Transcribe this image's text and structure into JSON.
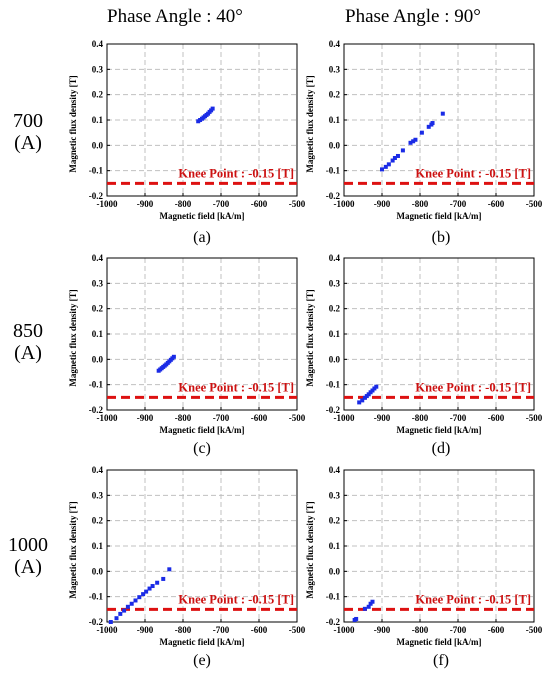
{
  "column_headers": [
    "Phase Angle : 40°",
    "Phase Angle : 90°"
  ],
  "row_labels": [
    {
      "value": "700",
      "unit": "(A)"
    },
    {
      "value": "850",
      "unit": "(A)"
    },
    {
      "value": "1000",
      "unit": "(A)"
    }
  ],
  "colors": {
    "data": "#1a2be6",
    "knee": "#dd1111",
    "grid": "#c0c0c0"
  },
  "chart_data": [
    {
      "type": "scatter",
      "caption": "(a)",
      "xlabel": "Magnetic field [kA/m]",
      "ylabel": "Magnetic flux density [T]",
      "xlim": [
        -1000,
        -500
      ],
      "ylim": [
        -0.2,
        0.4
      ],
      "xticks": [
        "-1000",
        "-900",
        "-800",
        "-700",
        "-600",
        "-500"
      ],
      "yticks": [
        "0.4",
        "0.3",
        "0.2",
        "0.1",
        "0.0",
        "-0.1",
        "-0.2"
      ],
      "knee_value": -0.15,
      "knee_label": "Knee Point : -0.15 [T]",
      "x": [
        -760,
        -755,
        -750,
        -746,
        -742,
        -738,
        -734,
        -730,
        -726,
        -722
      ],
      "y": [
        0.095,
        0.1,
        0.105,
        0.11,
        0.115,
        0.12,
        0.125,
        0.132,
        0.138,
        0.145
      ]
    },
    {
      "type": "scatter",
      "caption": "(b)",
      "xlabel": "Magnetic field [kA/m]",
      "ylabel": "Magnetic flux density [T]",
      "xlim": [
        -1000,
        -500
      ],
      "ylim": [
        -0.2,
        0.4
      ],
      "xticks": [
        "-1000",
        "-900",
        "-800",
        "-700",
        "-600",
        "-500"
      ],
      "yticks": [
        "0.4",
        "0.3",
        "0.2",
        "0.1",
        "0.0",
        "-0.1",
        "-0.2"
      ],
      "knee_value": -0.15,
      "knee_label": "Knee Point : -0.15 [T]",
      "x": [
        -900,
        -890,
        -882,
        -872,
        -866,
        -858,
        -845,
        -825,
        -818,
        -812,
        -795,
        -777,
        -770,
        -767,
        -740
      ],
      "y": [
        -0.095,
        -0.085,
        -0.075,
        -0.06,
        -0.05,
        -0.042,
        -0.02,
        0.01,
        0.016,
        0.022,
        0.05,
        0.073,
        0.082,
        0.088,
        0.125
      ]
    },
    {
      "type": "scatter",
      "caption": "(c)",
      "xlabel": "Magnetic field [kA/m]",
      "ylabel": "Magnetic flux density [T]",
      "xlim": [
        -1000,
        -500
      ],
      "ylim": [
        -0.2,
        0.4
      ],
      "xticks": [
        "-1000",
        "-900",
        "-800",
        "-700",
        "-600",
        "-500"
      ],
      "yticks": [
        "0.4",
        "0.3",
        "0.2",
        "0.1",
        "0.0",
        "-0.1",
        "-0.2"
      ],
      "knee_value": -0.15,
      "knee_label": "Knee Point : -0.15 [T]",
      "x": [
        -864,
        -860,
        -856,
        -852,
        -848,
        -844,
        -840,
        -836,
        -832,
        -828,
        -824
      ],
      "y": [
        -0.045,
        -0.04,
        -0.035,
        -0.03,
        -0.025,
        -0.02,
        -0.014,
        -0.008,
        -0.002,
        0.004,
        0.01
      ]
    },
    {
      "type": "scatter",
      "caption": "(d)",
      "xlabel": "Magnetic field [kA/m]",
      "ylabel": "Magnetic flux density [T]",
      "xlim": [
        -1000,
        -500
      ],
      "ylim": [
        -0.2,
        0.4
      ],
      "xticks": [
        "-1000",
        "-900",
        "-800",
        "-700",
        "-600",
        "-500"
      ],
      "yticks": [
        "0.4",
        "0.3",
        "0.2",
        "0.1",
        "0.0",
        "-0.1",
        "-0.2"
      ],
      "knee_value": -0.15,
      "knee_label": "Knee Point : -0.15 [T]",
      "x": [
        -960,
        -952,
        -945,
        -940,
        -935,
        -930,
        -925,
        -920,
        -915
      ],
      "y": [
        -0.17,
        -0.162,
        -0.152,
        -0.145,
        -0.138,
        -0.13,
        -0.123,
        -0.115,
        -0.108
      ]
    },
    {
      "type": "scatter",
      "caption": "(e)",
      "xlabel": "Magnetic field [kA/m]",
      "ylabel": "Magnetic flux density [T]",
      "xlim": [
        -1000,
        -500
      ],
      "ylim": [
        -0.2,
        0.4
      ],
      "xticks": [
        "-1000",
        "-900",
        "-800",
        "-700",
        "-600",
        "-500"
      ],
      "yticks": [
        "0.4",
        "0.3",
        "0.2",
        "0.1",
        "0.0",
        "-0.1",
        "-0.2"
      ],
      "knee_value": -0.15,
      "knee_label": "Knee Point : -0.15 [T]",
      "x": [
        -990,
        -975,
        -965,
        -955,
        -945,
        -935,
        -925,
        -915,
        -905,
        -897,
        -888,
        -880,
        -868,
        -852,
        -836
      ],
      "y": [
        -0.2,
        -0.185,
        -0.168,
        -0.155,
        -0.14,
        -0.128,
        -0.115,
        -0.102,
        -0.09,
        -0.08,
        -0.068,
        -0.058,
        -0.045,
        -0.03,
        0.008
      ]
    },
    {
      "type": "scatter",
      "caption": "(f)",
      "xlabel": "Magnetic field [kA/m]",
      "ylabel": "Magnetic flux density [T]",
      "xlim": [
        -1000,
        -500
      ],
      "ylim": [
        -0.2,
        0.4
      ],
      "xticks": [
        "-1000",
        "-900",
        "-800",
        "-700",
        "-600",
        "-500"
      ],
      "yticks": [
        "0.4",
        "0.3",
        "0.2",
        "0.1",
        "0.0",
        "-0.1",
        "-0.2"
      ],
      "knee_value": -0.15,
      "knee_label": "Knee Point : -0.15 [T]",
      "x": [
        -972,
        -968,
        -945,
        -935,
        -930,
        -925
      ],
      "y": [
        -0.192,
        -0.188,
        -0.148,
        -0.14,
        -0.128,
        -0.12
      ]
    }
  ]
}
